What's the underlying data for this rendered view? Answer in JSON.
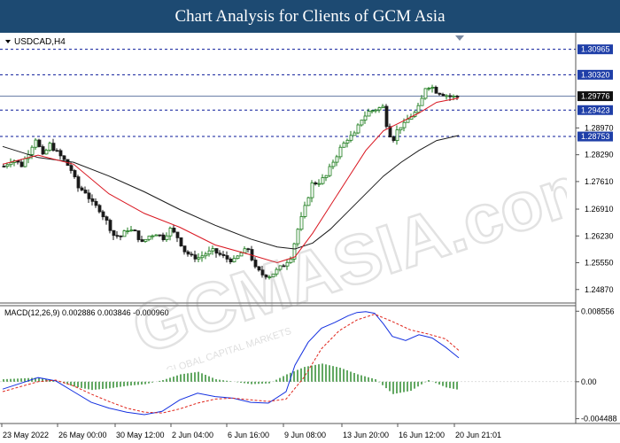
{
  "header": {
    "title": "Chart Analysis for Clients of GCM Asia"
  },
  "instrument": {
    "symbol": "USDCAD,H4"
  },
  "watermark": {
    "brand": "GCMASIA.com",
    "subtitle": "GLOBAL CAPITAL MARKETS"
  },
  "colors": {
    "header_bg": "#1d4a72",
    "bull_candle": "#1a7a1a",
    "bear_candle": "#1a1a1a",
    "ma_fast": "#d9151f",
    "ma_slow": "#1a1a1a",
    "level_line": "#0a1a9a",
    "macd_line": "#1430e0",
    "signal_line": "#e0261c",
    "histogram": "#2f8a2f",
    "price_tag_bg": "#1f3fa8",
    "current_price_bg": "#111111"
  },
  "chart_data": [
    {
      "type": "candlestick",
      "title": "USDCAD,H4",
      "ylim": [
        1.2455,
        1.3125
      ],
      "y_ticks": [
        "1.24870",
        "1.25550",
        "1.26230",
        "1.26910",
        "1.27610",
        "1.28290",
        "1.28970"
      ],
      "y_tick_values": [
        1.2487,
        1.2555,
        1.2623,
        1.2691,
        1.2761,
        1.2829,
        1.2897
      ],
      "levels": [
        {
          "label": "1.30965",
          "value": 1.30965
        },
        {
          "label": "1.30320",
          "value": 1.3032
        },
        {
          "label": "1.29423",
          "value": 1.29423
        },
        {
          "label": "1.28753",
          "value": 1.28753
        }
      ],
      "current_price": {
        "label": "1.29776",
        "value": 1.29776
      },
      "x_ticks": [
        "23 May 2022",
        "26 May 00:00",
        "30 May 12:00",
        "2 Jun 04:00",
        "6 Jun 16:00",
        "9 Jun 08:00",
        "13 Jun 20:00",
        "16 Jun 12:00",
        "20 Jun 21:01"
      ],
      "close_path": [
        [
          0,
          1.28
        ],
        [
          10,
          1.2818
        ],
        [
          20,
          1.2802
        ],
        [
          28,
          1.2835
        ],
        [
          36,
          1.287
        ],
        [
          44,
          1.2825
        ],
        [
          52,
          1.2855
        ],
        [
          60,
          1.2835
        ],
        [
          68,
          1.2815
        ],
        [
          76,
          1.279
        ],
        [
          84,
          1.2745
        ],
        [
          92,
          1.2735
        ],
        [
          100,
          1.2705
        ],
        [
          108,
          1.269
        ],
        [
          116,
          1.266
        ],
        [
          124,
          1.2625
        ],
        [
          132,
          1.2622
        ],
        [
          140,
          1.264
        ],
        [
          148,
          1.2632
        ],
        [
          156,
          1.2605
        ],
        [
          164,
          1.2623
        ],
        [
          172,
          1.263
        ],
        [
          180,
          1.2618
        ],
        [
          188,
          1.264
        ],
        [
          196,
          1.262
        ],
        [
          204,
          1.2585
        ],
        [
          212,
          1.257
        ],
        [
          220,
          1.2568
        ],
        [
          228,
          1.2578
        ],
        [
          236,
          1.2585
        ],
        [
          244,
          1.2575
        ],
        [
          252,
          1.2565
        ],
        [
          260,
          1.256
        ],
        [
          268,
          1.258
        ],
        [
          276,
          1.259
        ],
        [
          284,
          1.254
        ],
        [
          292,
          1.2525
        ],
        [
          300,
          1.2522
        ],
        [
          308,
          1.2535
        ],
        [
          316,
          1.255
        ],
        [
          324,
          1.257
        ],
        [
          332,
          1.264
        ],
        [
          340,
          1.2695
        ],
        [
          348,
          1.2755
        ],
        [
          356,
          1.276
        ],
        [
          364,
          1.2775
        ],
        [
          372,
          1.2812
        ],
        [
          380,
          1.2845
        ],
        [
          388,
          1.287
        ],
        [
          396,
          1.288
        ],
        [
          404,
          1.292
        ],
        [
          412,
          1.2938
        ],
        [
          420,
          1.2945
        ],
        [
          428,
          1.295
        ],
        [
          434,
          1.2885
        ],
        [
          440,
          1.287
        ],
        [
          446,
          1.29
        ],
        [
          452,
          1.2905
        ],
        [
          458,
          1.2925
        ],
        [
          464,
          1.2935
        ],
        [
          470,
          1.2955
        ],
        [
          476,
          1.3
        ],
        [
          482,
          1.3005
        ],
        [
          488,
          1.299
        ],
        [
          494,
          1.2985
        ],
        [
          500,
          1.298
        ],
        [
          506,
          1.2975
        ],
        [
          512,
          1.29776
        ]
      ],
      "ma_fast": [
        [
          0,
          1.2805
        ],
        [
          40,
          1.2828
        ],
        [
          80,
          1.2805
        ],
        [
          120,
          1.273
        ],
        [
          160,
          1.268
        ],
        [
          200,
          1.2645
        ],
        [
          240,
          1.26
        ],
        [
          280,
          1.2575
        ],
        [
          310,
          1.2555
        ],
        [
          330,
          1.257
        ],
        [
          350,
          1.263
        ],
        [
          370,
          1.27
        ],
        [
          390,
          1.277
        ],
        [
          410,
          1.284
        ],
        [
          430,
          1.289
        ],
        [
          450,
          1.2912
        ],
        [
          470,
          1.2935
        ],
        [
          490,
          1.2962
        ],
        [
          515,
          1.2973
        ]
      ],
      "ma_slow": [
        [
          0,
          1.285
        ],
        [
          40,
          1.2822
        ],
        [
          80,
          1.281
        ],
        [
          120,
          1.2775
        ],
        [
          160,
          1.2735
        ],
        [
          200,
          1.269
        ],
        [
          240,
          1.265
        ],
        [
          280,
          1.2615
        ],
        [
          310,
          1.2595
        ],
        [
          330,
          1.259
        ],
        [
          350,
          1.2605
        ],
        [
          370,
          1.264
        ],
        [
          390,
          1.2685
        ],
        [
          410,
          1.273
        ],
        [
          430,
          1.2775
        ],
        [
          450,
          1.281
        ],
        [
          470,
          1.284
        ],
        [
          490,
          1.2865
        ],
        [
          515,
          1.2878
        ]
      ]
    },
    {
      "type": "line",
      "title": "MACD(12,26,9) 0.002886 0.003846 -0.000960",
      "indicator_label": "MACD(12,26,9) 0.002886 0.003846 -0.000960",
      "ylim": [
        -0.00475,
        0.0088
      ],
      "y_ticks": [
        "0.008556",
        "0.00",
        "-0.004488"
      ],
      "y_tick_values": [
        0.008556,
        0.0,
        -0.004488
      ],
      "series": [
        {
          "name": "MACD",
          "x": [
            0,
            20,
            40,
            60,
            80,
            100,
            120,
            140,
            160,
            180,
            200,
            220,
            240,
            260,
            280,
            300,
            320,
            330,
            345,
            360,
            375,
            390,
            400,
            410,
            420,
            430,
            440,
            455,
            470,
            485,
            500,
            515
          ],
          "values": [
            -0.0009,
            -0.0002,
            0.0005,
            0.0001,
            -0.0012,
            -0.0025,
            -0.0032,
            -0.0037,
            -0.004,
            -0.0036,
            -0.0022,
            -0.0014,
            -0.0018,
            -0.002,
            -0.0025,
            -0.0026,
            -0.0012,
            0.002,
            0.0048,
            0.0065,
            0.0072,
            0.008,
            0.0084,
            0.0085,
            0.0083,
            0.007,
            0.0055,
            0.005,
            0.0057,
            0.0053,
            0.0042,
            0.0029
          ]
        },
        {
          "name": "Signal",
          "x": [
            0,
            20,
            40,
            60,
            80,
            100,
            120,
            140,
            160,
            180,
            200,
            220,
            240,
            260,
            280,
            300,
            320,
            340,
            360,
            380,
            400,
            420,
            440,
            460,
            480,
            500,
            515
          ],
          "values": [
            -0.0012,
            -0.0006,
            0.0,
            0.0002,
            -0.0005,
            -0.0015,
            -0.0024,
            -0.0032,
            -0.0037,
            -0.0038,
            -0.0033,
            -0.0026,
            -0.0021,
            -0.002,
            -0.0022,
            -0.0024,
            -0.0021,
            0.0005,
            0.004,
            0.0062,
            0.0075,
            0.0082,
            0.0073,
            0.0063,
            0.0058,
            0.0052,
            0.0038
          ]
        },
        {
          "name": "Histogram",
          "x": [
            0,
            20,
            40,
            60,
            80,
            100,
            120,
            140,
            160,
            180,
            200,
            220,
            240,
            260,
            280,
            300,
            320,
            340,
            360,
            380,
            400,
            420,
            440,
            460,
            480,
            500,
            515
          ],
          "values": [
            0.0003,
            0.0004,
            0.0005,
            0.0001,
            -0.0006,
            -0.001,
            -0.0008,
            -0.0005,
            -0.0003,
            0.0002,
            0.0009,
            0.0012,
            0.0003,
            0.0,
            -0.0003,
            -0.0002,
            0.0009,
            0.0018,
            0.0022,
            0.0017,
            0.0009,
            0.0003,
            -0.0015,
            -0.0011,
            0.0002,
            -0.0007,
            -0.001
          ]
        }
      ]
    }
  ]
}
